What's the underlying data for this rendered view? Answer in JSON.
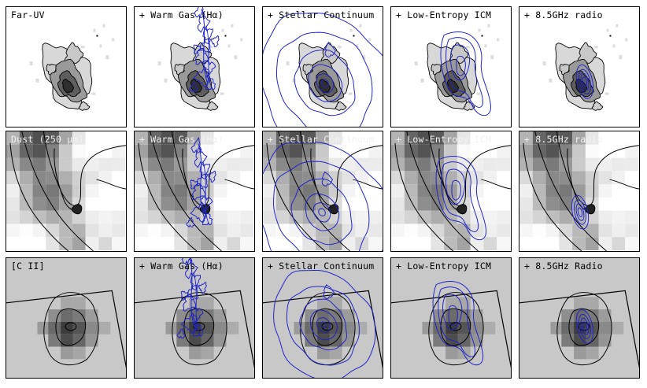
{
  "rows": [
    {
      "id": "fuv",
      "panels": [
        {
          "label": "Far-UV",
          "overlay": "none"
        },
        {
          "label": "+ Warm Gas (Hα)",
          "overlay": "halpha"
        },
        {
          "label": "+ Stellar Continuum",
          "overlay": "stellar"
        },
        {
          "label": "+ Low-Entropy ICM",
          "overlay": "icm"
        },
        {
          "label": "+ 8.5GHz radio",
          "overlay": "radio"
        }
      ]
    },
    {
      "id": "dust",
      "panels": [
        {
          "label": "Dust (250 μm)",
          "overlay": "none"
        },
        {
          "label": "+ Warm Gas (Hα)",
          "overlay": "halpha"
        },
        {
          "label": "+ Stellar Continuum",
          "overlay": "stellar"
        },
        {
          "label": "+ Low-Entropy ICM",
          "overlay": "icm"
        },
        {
          "label": "+ 8.5GHz radio",
          "overlay": "radio"
        }
      ]
    },
    {
      "id": "cii",
      "panels": [
        {
          "label": "[C II]",
          "overlay": "none"
        },
        {
          "label": "+ Warm Gas (Hα)",
          "overlay": "halpha"
        },
        {
          "label": "+ Stellar Continuum",
          "overlay": "stellar"
        },
        {
          "label": "+ Low-Entropy ICM",
          "overlay": "icm"
        },
        {
          "label": "+ 8.5GHz Radio",
          "overlay": "radio"
        }
      ]
    }
  ],
  "colors": {
    "contour": "#000000",
    "overlay": "#1f24c8",
    "cii_bg": "#c8c8c8"
  }
}
